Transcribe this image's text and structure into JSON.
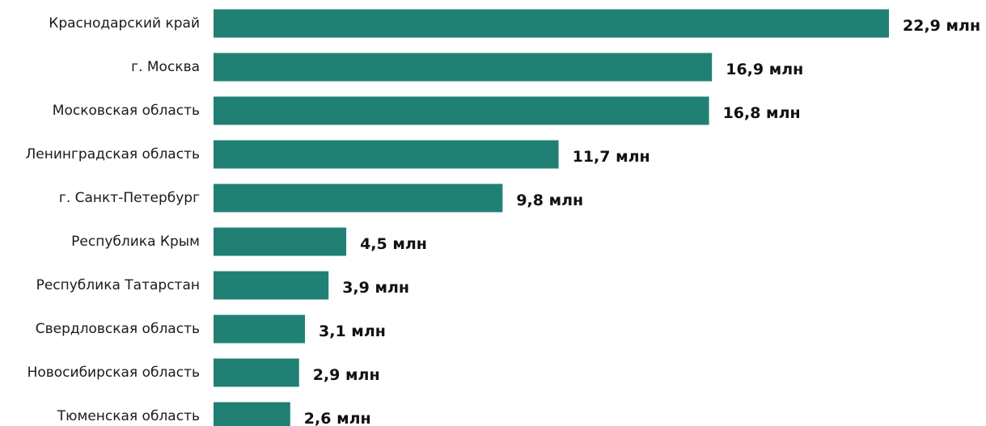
{
  "chart_data": {
    "type": "bar",
    "orientation": "horizontal",
    "categories": [
      "Краснодарский край",
      "г. Москва",
      "Московская область",
      "Ленинградская область",
      "г. Санкт-Петербург",
      "Республика Крым",
      "Республика Татарстан",
      "Свердловская область",
      "Новосибирская область",
      "Тюменская область"
    ],
    "values": [
      22.9,
      16.9,
      16.8,
      11.7,
      9.8,
      4.5,
      3.9,
      3.1,
      2.9,
      2.6
    ],
    "value_labels": [
      "22,9 млн",
      "16,9 млн",
      "16,8 млн",
      "11,7 млн",
      "9,8 млн",
      "4,5 млн",
      "3,9 млн",
      "3,1 млн",
      "2,9 млн",
      "2,6 млн"
    ],
    "bar_color": "#218074",
    "grid": false,
    "legend": "none"
  }
}
